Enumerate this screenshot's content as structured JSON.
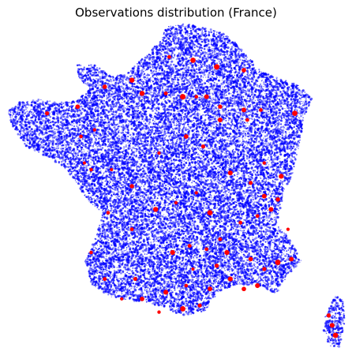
{
  "chart_data": {
    "type": "scatter",
    "title": "Observations distribution (France)",
    "xlabel": "",
    "ylabel": "",
    "axes_visible": false,
    "grid": false,
    "legend": "none",
    "colors": {
      "dense_points": "#0000ff",
      "highlight_points": "#ff0000"
    },
    "series": [
      {
        "marker": "dense-density",
        "color": "#0000ff",
        "count_description": "many thousands of small translucent points covering metropolitan France and Corsica"
      },
      {
        "marker": "highlight",
        "color": "#ff0000",
        "points": [
          [
            0.12,
            0.28
          ],
          [
            0.21,
            0.26
          ],
          [
            0.37,
            0.18
          ],
          [
            0.4,
            0.22
          ],
          [
            0.47,
            0.22
          ],
          [
            0.52,
            0.23
          ],
          [
            0.56,
            0.23
          ],
          [
            0.59,
            0.23
          ],
          [
            0.63,
            0.26
          ],
          [
            0.7,
            0.27
          ],
          [
            0.75,
            0.27
          ],
          [
            0.85,
            0.28
          ],
          [
            0.26,
            0.33
          ],
          [
            0.23,
            0.43
          ],
          [
            0.25,
            0.45
          ],
          [
            0.31,
            0.45
          ],
          [
            0.37,
            0.5
          ],
          [
            0.45,
            0.4
          ],
          [
            0.53,
            0.35
          ],
          [
            0.58,
            0.38
          ],
          [
            0.63,
            0.3
          ],
          [
            0.71,
            0.3
          ],
          [
            0.66,
            0.46
          ],
          [
            0.72,
            0.49
          ],
          [
            0.76,
            0.53
          ],
          [
            0.78,
            0.57
          ],
          [
            0.8,
            0.54
          ],
          [
            0.74,
            0.59
          ],
          [
            0.69,
            0.61
          ],
          [
            0.63,
            0.66
          ],
          [
            0.65,
            0.7
          ],
          [
            0.72,
            0.72
          ],
          [
            0.76,
            0.75
          ],
          [
            0.8,
            0.73
          ],
          [
            0.84,
            0.72
          ],
          [
            0.55,
            0.75
          ],
          [
            0.53,
            0.8
          ],
          [
            0.47,
            0.82
          ],
          [
            0.4,
            0.84
          ],
          [
            0.34,
            0.84
          ],
          [
            0.29,
            0.78
          ],
          [
            0.25,
            0.7
          ],
          [
            0.3,
            0.58
          ],
          [
            0.37,
            0.63
          ],
          [
            0.44,
            0.57
          ],
          [
            0.5,
            0.55
          ],
          [
            0.56,
            0.52
          ],
          [
            0.6,
            0.58
          ],
          [
            0.66,
            0.78
          ],
          [
            0.7,
            0.81
          ],
          [
            0.74,
            0.8
          ],
          [
            0.6,
            0.81
          ],
          [
            0.57,
            0.86
          ],
          [
            0.52,
            0.87
          ],
          [
            0.45,
            0.88
          ],
          [
            0.38,
            0.78
          ],
          [
            0.49,
            0.7
          ],
          [
            0.54,
            0.68
          ],
          [
            0.59,
            0.69
          ],
          [
            0.62,
            0.74
          ],
          [
            0.22,
            0.35
          ],
          [
            0.29,
            0.2
          ],
          [
            0.48,
            0.11
          ],
          [
            0.55,
            0.12
          ],
          [
            0.62,
            0.14
          ],
          [
            0.7,
            0.15
          ],
          [
            0.76,
            0.43
          ],
          [
            0.81,
            0.47
          ],
          [
            0.83,
            0.63
          ],
          [
            0.95,
            0.89
          ],
          [
            0.96,
            0.92
          ],
          [
            0.97,
            0.95
          ]
        ]
      }
    ]
  }
}
